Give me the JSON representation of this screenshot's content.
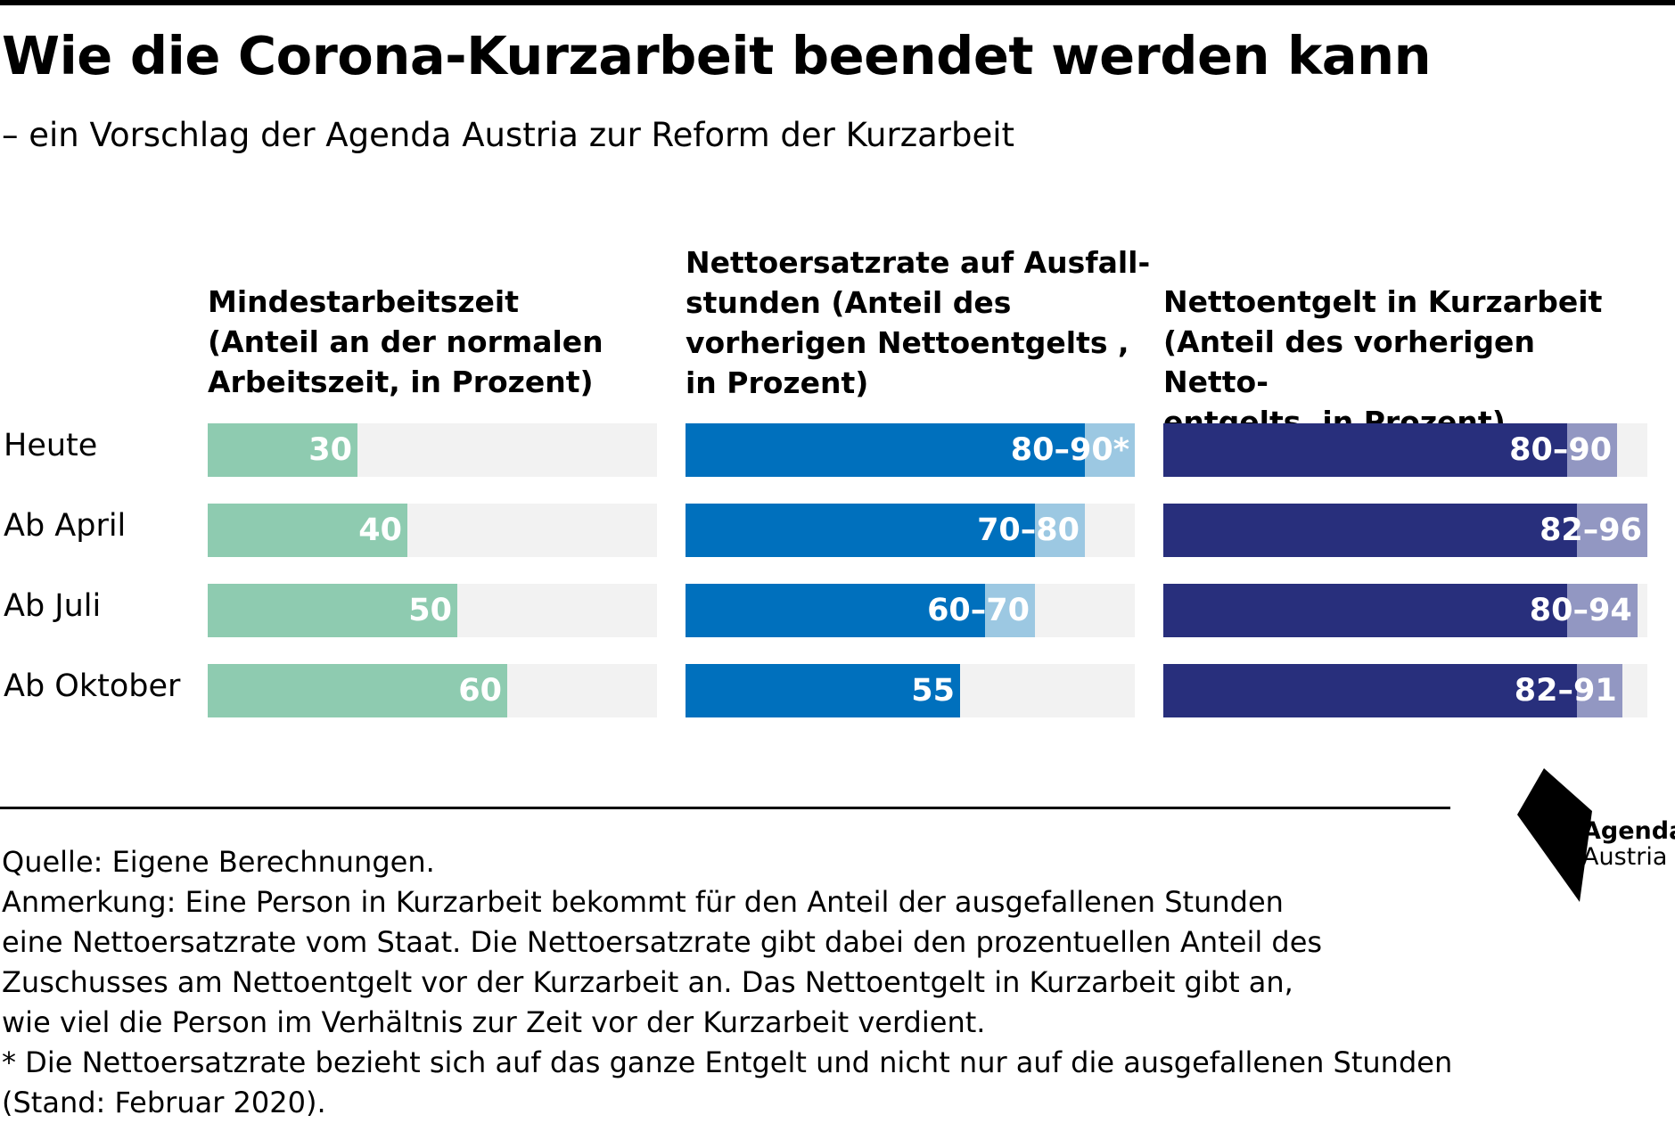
{
  "title": "Wie die Corona-Kurzarbeit beendet werden kann",
  "subtitle": "– ein Vorschlag der Agenda Austria zur Reform der Kurzarbeit",
  "chart_data": {
    "type": "bar",
    "orientation": "horizontal",
    "categories": [
      "Heute",
      "Ab April",
      "Ab Juli",
      "Ab Oktober"
    ],
    "panels": [
      {
        "title": "Mindestarbeitszeit\n(Anteil an der normalen\nArbeitszeit, in Prozent)",
        "xlim": [
          0,
          90
        ],
        "series": [
          {
            "values": [
              30,
              40,
              50,
              60
            ],
            "color": "#8ecbb0"
          }
        ],
        "labels": [
          "30",
          "40",
          "50",
          "60"
        ],
        "track_color": "#f2f2f2"
      },
      {
        "title": "Nettoersatzrate auf Ausfall-\nstunden (Anteil des\nvorherigen Nettoentgelts ,\nin Prozent)",
        "xlim": [
          0,
          90
        ],
        "series": [
          {
            "values": [
              80,
              70,
              60,
              55
            ],
            "color": "#0070bd"
          },
          {
            "values": [
              90,
              80,
              70,
              55
            ],
            "color": "#9cc8e2"
          }
        ],
        "labels": [
          "80–90*",
          "70–80",
          "60–70",
          "55"
        ],
        "track_color": "#f2f2f2"
      },
      {
        "title": "Nettoentgelt in Kurzarbeit\n(Anteil des vorherigen Netto-\nentgelts, in Prozent)",
        "xlim": [
          0,
          96
        ],
        "series": [
          {
            "values": [
              80,
              82,
              80,
              82
            ],
            "color": "#282f7c"
          },
          {
            "values": [
              90,
              96,
              94,
              91
            ],
            "color": "#9297c2"
          }
        ],
        "labels": [
          "80–90",
          "82–96",
          "80–94",
          "82–91"
        ],
        "track_color": "#f2f2f2"
      }
    ]
  },
  "notes": [
    "Quelle: Eigene Berechnungen.",
    "Anmerkung: Eine Person in Kurzarbeit bekommt für den Anteil der ausgefallenen Stunden",
    "eine Nettoersatzrate vom Staat. Die Nettoersatzrate gibt dabei den prozentuellen Anteil des",
    "Zuschusses am Nettoentgelt vor der Kurzarbeit an. Das Nettoentgelt in Kurzarbeit gibt an,",
    "wie viel die Person im Verhältnis zur Zeit vor der Kurzarbeit verdient.",
    "* Die Nettoersatzrate bezieht sich auf das ganze Entgelt und nicht nur auf die ausgefallenen Stunden",
    "(Stand: Februar 2020)."
  ],
  "logo": {
    "line1": "Agenda",
    "line2": "Austria"
  }
}
